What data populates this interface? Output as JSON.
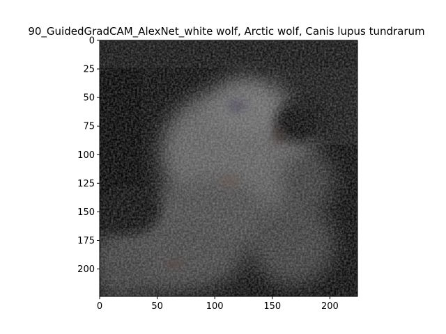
{
  "chart_data": {
    "type": "heatmap",
    "title": "90_GuidedGradCAM_AlexNet_white wolf, Arctic wolf, Canis lupus tundrarum",
    "xlabel": "",
    "ylabel": "",
    "xlim": [
      0,
      224
    ],
    "ylim": [
      224,
      0
    ],
    "x_ticks": [
      0,
      50,
      100,
      150,
      200
    ],
    "y_ticks": [
      0,
      25,
      50,
      75,
      100,
      125,
      150,
      175,
      200
    ],
    "colormap": "guided-gradcam grayscale with faint color fringes",
    "grid": false,
    "legend": "none"
  }
}
